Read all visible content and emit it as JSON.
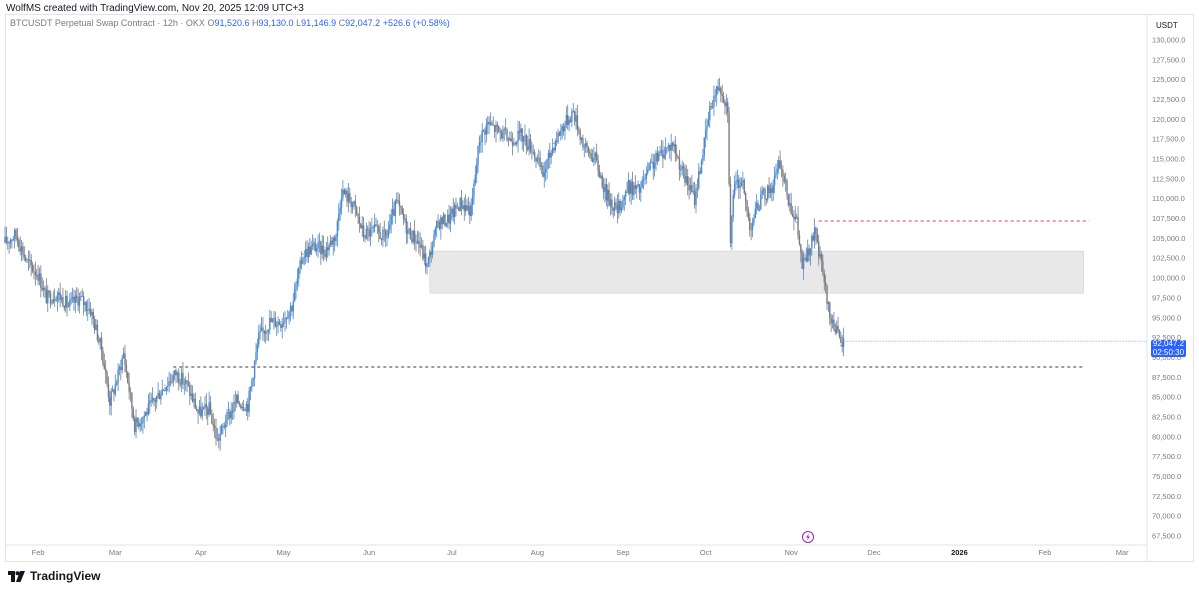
{
  "header": {
    "text": "WolfMS created with TradingView.com, Nov 20, 2025 12:09 UTC+3"
  },
  "legend": {
    "symbol": "BTCUSDT Perpetual Swap Contract · 12h · OKX",
    "o_label": "O",
    "o": "91,520.6",
    "h_label": "H",
    "h": "93,130.0",
    "l_label": "L",
    "l": "91,146.9",
    "c_label": "C",
    "c": "92,047.2",
    "change": "+526.6 (+0.58%)"
  },
  "currency": "USDT",
  "price_badge": {
    "price": "92,047.2",
    "countdown": "02:50:30"
  },
  "footer": {
    "brand": "TradingView"
  },
  "colors": {
    "up": "#4a8ad1",
    "down": "#7a7a80",
    "badge": "#2962ff",
    "zone": "#e0e0e0",
    "red_line": "#f23645",
    "dark_line": "#363a45"
  },
  "chart_data": {
    "type": "line",
    "title": "",
    "xlabel": "",
    "ylabel": "",
    "x_ticks": [
      "Feb",
      "Mar",
      "Apr",
      "May",
      "Jun",
      "Jul",
      "Aug",
      "Sep",
      "Oct",
      "Nov",
      "Dec",
      "2026",
      "Feb",
      "Mar"
    ],
    "y_ticks": [
      "67,500.0",
      "70,000.0",
      "72,500.0",
      "75,000.0",
      "77,500.0",
      "80,000.0",
      "82,500.0",
      "85,000.0",
      "87,500.0",
      "90,000.0",
      "92,500.0",
      "95,000.0",
      "97,500.0",
      "100,000.0",
      "102,500.0",
      "105,000.0",
      "107,500.0",
      "110,000.0",
      "112,500.0",
      "115,000.0",
      "117,500.0",
      "120,000.0",
      "122,500.0",
      "125,000.0",
      "127,500.0",
      "130,000.0"
    ],
    "ylim": [
      67500,
      130000
    ],
    "xlim": [
      "2025-01-20",
      "2026-03-10"
    ],
    "series": [
      {
        "x": [
          "2025-01-20",
          "2025-01-24",
          "2025-01-28",
          "2025-02-01",
          "2025-02-04",
          "2025-02-08",
          "2025-02-12",
          "2025-02-16",
          "2025-02-20",
          "2025-02-24",
          "2025-02-27",
          "2025-03-01",
          "2025-03-04",
          "2025-03-08",
          "2025-03-11",
          "2025-03-15",
          "2025-03-19",
          "2025-03-23",
          "2025-03-27",
          "2025-03-31",
          "2025-04-04",
          "2025-04-07",
          "2025-04-10",
          "2025-04-14",
          "2025-04-18",
          "2025-04-22",
          "2025-04-26",
          "2025-04-30",
          "2025-05-04",
          "2025-05-08",
          "2025-05-12",
          "2025-05-16",
          "2025-05-20",
          "2025-05-22",
          "2025-05-26",
          "2025-05-30",
          "2025-06-03",
          "2025-06-07",
          "2025-06-11",
          "2025-06-15",
          "2025-06-19",
          "2025-06-22",
          "2025-06-26",
          "2025-06-30",
          "2025-07-04",
          "2025-07-08",
          "2025-07-11",
          "2025-07-14",
          "2025-07-18",
          "2025-07-22",
          "2025-07-26",
          "2025-07-30",
          "2025-08-03",
          "2025-08-07",
          "2025-08-10",
          "2025-08-14",
          "2025-08-18",
          "2025-08-22",
          "2025-08-26",
          "2025-08-30",
          "2025-09-03",
          "2025-09-07",
          "2025-09-11",
          "2025-09-15",
          "2025-09-19",
          "2025-09-23",
          "2025-09-27",
          "2025-10-01",
          "2025-10-03",
          "2025-10-06",
          "2025-10-09",
          "2025-10-10",
          "2025-10-11",
          "2025-10-14",
          "2025-10-17",
          "2025-10-21",
          "2025-10-25",
          "2025-10-28",
          "2025-10-31",
          "2025-11-03",
          "2025-11-05",
          "2025-11-07",
          "2025-11-10",
          "2025-11-11",
          "2025-11-13",
          "2025-11-15",
          "2025-11-17",
          "2025-11-19",
          "2025-11-20"
        ],
        "values": [
          104500,
          105500,
          102000,
          100500,
          97500,
          98000,
          96500,
          97500,
          96000,
          91000,
          84500,
          86500,
          90500,
          81500,
          82500,
          84500,
          86500,
          88000,
          86500,
          83000,
          83500,
          79500,
          82000,
          84500,
          84000,
          92500,
          94500,
          94500,
          96500,
          103000,
          104000,
          103500,
          105500,
          111000,
          109500,
          105500,
          106000,
          105000,
          109500,
          106000,
          104500,
          101500,
          107000,
          107500,
          109500,
          108500,
          117500,
          119500,
          118500,
          117500,
          118000,
          116500,
          113000,
          117000,
          119000,
          121000,
          116500,
          115000,
          110500,
          108500,
          111500,
          111000,
          114000,
          115800,
          117000,
          113000,
          110000,
          118000,
          122000,
          124500,
          121500,
          104000,
          111000,
          112500,
          106500,
          110000,
          111500,
          114500,
          110000,
          107000,
          101500,
          103000,
          106000,
          103000,
          99500,
          95000,
          94000,
          91500,
          92047
        ]
      }
    ],
    "levels": [
      {
        "kind": "dashed-dark",
        "value": 88800,
        "from": "2025-03-22",
        "to": "2026-02-15"
      },
      {
        "kind": "dashed-red",
        "value": 107200,
        "from": "2025-11-11",
        "to": "2026-02-17"
      }
    ],
    "zones": [
      {
        "from": "2025-06-23",
        "to": "2026-02-15",
        "low": 98100,
        "high": 103400
      }
    ],
    "current_price": 92047.2
  }
}
